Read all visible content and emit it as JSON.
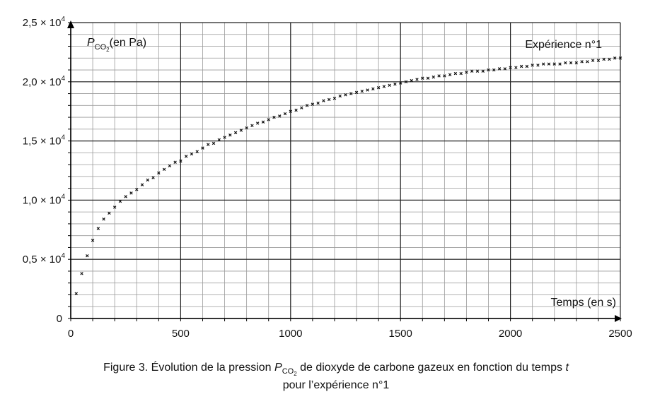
{
  "chart_data": {
    "type": "scatter",
    "annotation": "Expérience n°1",
    "xlabel": "Temps (en s)",
    "ylabel_main": "P",
    "ylabel_sub": "CO",
    "ylabel_sub2": "2",
    "ylabel_unit": "(en Pa)",
    "xlim": [
      0,
      2500
    ],
    "ylim": [
      0,
      25000
    ],
    "x_ticks": [
      {
        "value": 0,
        "label": "0"
      },
      {
        "value": 500,
        "label": "500"
      },
      {
        "value": 1000,
        "label": "1000"
      },
      {
        "value": 1500,
        "label": "1500"
      },
      {
        "value": 2000,
        "label": "2000"
      },
      {
        "value": 2500,
        "label": "2500"
      }
    ],
    "y_ticks": [
      {
        "value": 0,
        "label": "0"
      },
      {
        "value": 5000,
        "label": "0,5 × 10"
      },
      {
        "value": 10000,
        "label": "1,0 × 10"
      },
      {
        "value": 15000,
        "label": "1,5 × 10"
      },
      {
        "value": 20000,
        "label": "2,0 × 10"
      },
      {
        "value": 25000,
        "label": "2,5 × 10"
      }
    ],
    "y_tick_exponent": "4",
    "grid": true,
    "grid_minor_x": 100,
    "grid_minor_y": 1000,
    "x": [
      25,
      50,
      75,
      100,
      125,
      150,
      175,
      200,
      225,
      250,
      275,
      300,
      325,
      350,
      375,
      400,
      425,
      450,
      475,
      500,
      525,
      550,
      575,
      600,
      625,
      650,
      675,
      700,
      725,
      750,
      775,
      800,
      825,
      850,
      875,
      900,
      925,
      950,
      975,
      1000,
      1025,
      1050,
      1075,
      1100,
      1125,
      1150,
      1175,
      1200,
      1225,
      1250,
      1275,
      1300,
      1325,
      1350,
      1375,
      1400,
      1425,
      1450,
      1475,
      1500,
      1525,
      1550,
      1575,
      1600,
      1625,
      1650,
      1675,
      1700,
      1725,
      1750,
      1775,
      1800,
      1825,
      1850,
      1875,
      1900,
      1925,
      1950,
      1975,
      2000,
      2025,
      2050,
      2075,
      2100,
      2125,
      2150,
      2175,
      2200,
      2225,
      2250,
      2275,
      2300,
      2325,
      2350,
      2375,
      2400,
      2425,
      2450,
      2475,
      2500
    ],
    "y": [
      2100,
      3800,
      5300,
      6600,
      7600,
      8400,
      8900,
      9400,
      9900,
      10300,
      10600,
      10900,
      11300,
      11700,
      11900,
      12300,
      12600,
      12900,
      13200,
      13300,
      13700,
      13900,
      14100,
      14400,
      14700,
      14800,
      15100,
      15300,
      15500,
      15700,
      15900,
      16100,
      16300,
      16500,
      16600,
      16800,
      17000,
      17100,
      17300,
      17500,
      17600,
      17800,
      18000,
      18100,
      18200,
      18400,
      18500,
      18600,
      18800,
      18900,
      19000,
      19100,
      19200,
      19300,
      19400,
      19500,
      19600,
      19700,
      19800,
      19900,
      20000,
      20100,
      20200,
      20300,
      20300,
      20400,
      20500,
      20500,
      20600,
      20700,
      20700,
      20800,
      20900,
      20900,
      20900,
      21000,
      21000,
      21100,
      21100,
      21200,
      21200,
      21300,
      21300,
      21400,
      21400,
      21500,
      21500,
      21500,
      21500,
      21600,
      21600,
      21600,
      21700,
      21700,
      21800,
      21800,
      21900,
      21900,
      22000,
      22000
    ]
  },
  "caption": {
    "line1_before": "Figure 3. Évolution de la pression ",
    "line1_p": "P",
    "line1_sub": "CO",
    "line1_sub2": "2",
    "line1_after": " de dioxyde de carbone gazeux en fonction du temps ",
    "line1_t": "t",
    "line2": "pour l’expérience n°1"
  }
}
